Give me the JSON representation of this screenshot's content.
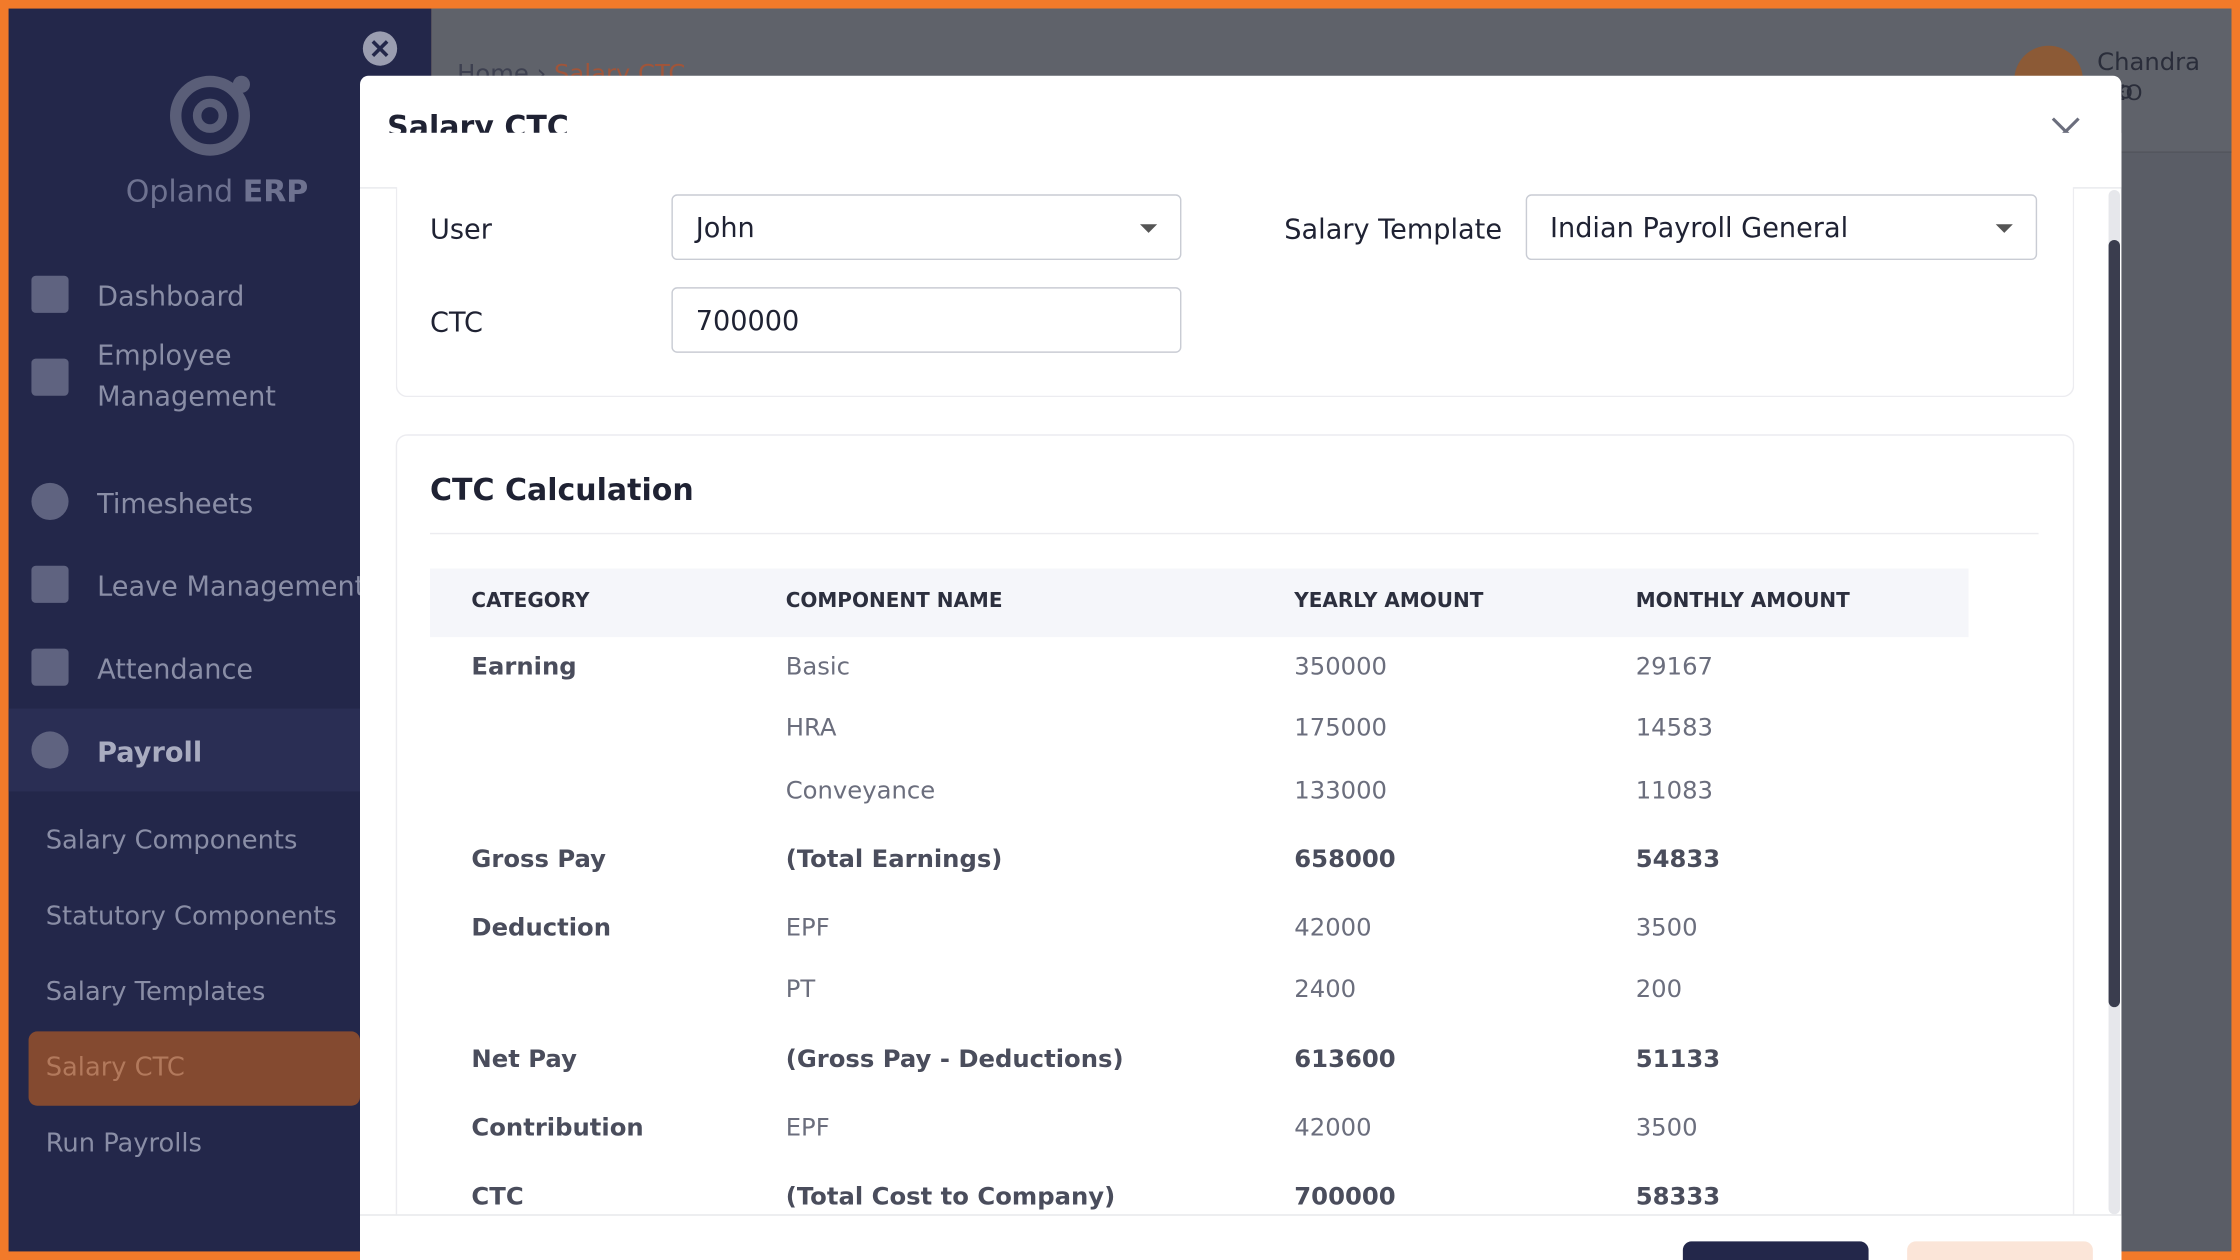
{
  "sidebar": {
    "brand": {
      "name": "Opland",
      "suffix": "ERP"
    },
    "menu": [
      "Dashboard",
      "Employee Management",
      "Timesheets",
      "Leave Management",
      "Attendance",
      "Payroll"
    ],
    "submenu": [
      "Salary Components",
      "Statutory Components",
      "Salary Templates",
      "Salary CTC",
      "Run Payrolls"
    ]
  },
  "header": {
    "breadcrumb": [
      "Home",
      "Salary CTC"
    ],
    "user": {
      "name": "Chandra Mo",
      "role": "CEO"
    }
  },
  "modal": {
    "title": "Salary CTC",
    "form": {
      "user_label": "User",
      "user_value": "John",
      "template_label": "Salary Template",
      "template_value": "Indian Payroll General",
      "ctc_label": "CTC",
      "ctc_value": "700000"
    },
    "card_title": "CTC Calculation",
    "table": {
      "columns": [
        "CATEGORY",
        "COMPONENT NAME",
        "YEARLY AMOUNT",
        "MONTHLY AMOUNT"
      ],
      "rows": [
        [
          "Earning",
          "Basic",
          350000,
          29167
        ],
        [
          null,
          "HRA",
          175000,
          14583
        ],
        [
          null,
          "Conveyance",
          133000,
          11083
        ],
        [
          "Gross Pay",
          "(Total Earnings)",
          658000,
          54833
        ],
        [
          "Deduction",
          "EPF",
          42000,
          3500
        ],
        [
          null,
          "PT",
          2400,
          200
        ],
        [
          "Net Pay",
          "(Gross Pay - Deductions)",
          613600,
          51133
        ],
        [
          "Contribution",
          "EPF",
          42000,
          3500
        ],
        [
          "CTC",
          "(Total Cost to Company)",
          700000,
          58333
        ]
      ]
    }
  }
}
